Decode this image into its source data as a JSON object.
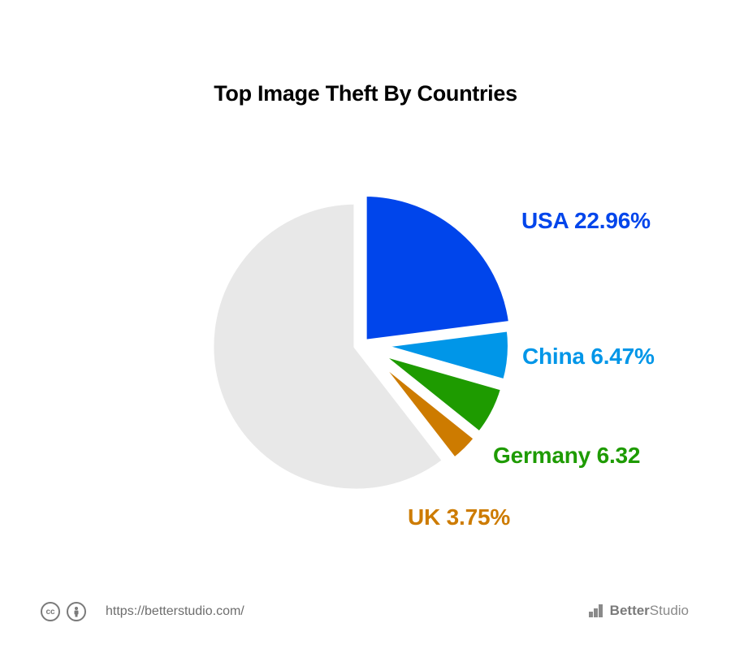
{
  "chart_data": {
    "type": "pie",
    "title": "Top Image Theft By Countries",
    "slices": [
      {
        "label": "USA 22.96%",
        "name": "USA",
        "value": 22.96,
        "color": "#0045EB"
      },
      {
        "label": "China 6.47%",
        "name": "China",
        "value": 6.47,
        "color": "#0096E8"
      },
      {
        "label": "Germany 6.32",
        "name": "Germany",
        "value": 6.32,
        "color": "#1E9B00"
      },
      {
        "label": "UK 3.75%",
        "name": "UK",
        "value": 3.75,
        "color": "#CD7B00"
      },
      {
        "label": "",
        "name": "",
        "value": 60.5,
        "color": "#E8E8E8"
      }
    ]
  },
  "footer": {
    "cc_icon_label": "cc",
    "url": "https://betterstudio.com/",
    "brand_bold": "Better",
    "brand_rest": "Studio"
  },
  "icons": [
    "cc-icon",
    "attribution-icon",
    "betterstudio-logo-icon"
  ]
}
